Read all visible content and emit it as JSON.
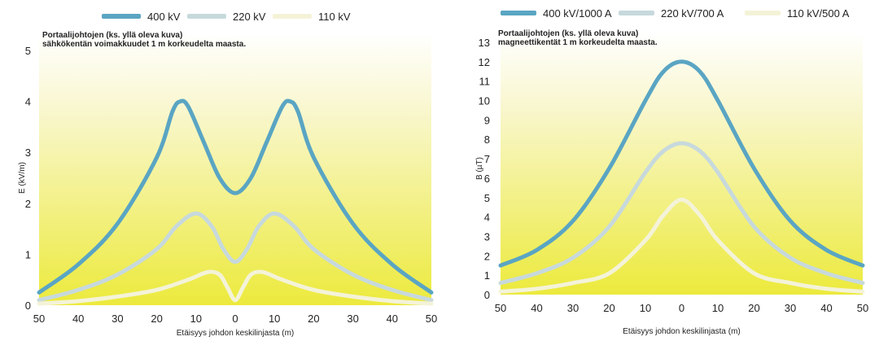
{
  "colors": {
    "series_400": "#5aa5c3",
    "series_220": "#c7d9dc",
    "series_110": "#f4f3d8",
    "bg_top": "#ffffff",
    "bg_bottom": "#ecea3c"
  },
  "chart_data": [
    {
      "type": "line",
      "annotation": "Portaalijohtojen (ks. yllä oleva kuva)\nsähkökentän voimakkuudet 1 m korkeudelta maasta.",
      "xlabel": "Etäisyys johdon keskilinjasta (m)",
      "ylabel": "E (kV/m)",
      "x_tick_labels": [
        "50",
        "40",
        "30",
        "20",
        "10",
        "0",
        "10",
        "20",
        "30",
        "40",
        "50"
      ],
      "y_tick_labels": [
        "0",
        "1",
        "2",
        "3",
        "4",
        "5"
      ],
      "xlim": [
        -50,
        50
      ],
      "ylim": [
        0,
        5
      ],
      "legend_position": "top",
      "grid": false,
      "series": [
        {
          "name": "400 kV",
          "x": [
            -50,
            -40,
            -30,
            -20,
            -16,
            -14,
            -12,
            -8,
            -4,
            0,
            4,
            8,
            12,
            14,
            16,
            20,
            30,
            40,
            50
          ],
          "y": [
            0.25,
            0.8,
            1.6,
            2.9,
            3.8,
            4.0,
            3.9,
            3.2,
            2.5,
            2.2,
            2.5,
            3.2,
            3.9,
            4.0,
            3.8,
            2.9,
            1.6,
            0.8,
            0.25
          ]
        },
        {
          "name": "220 kV",
          "x": [
            -50,
            -40,
            -30,
            -20,
            -15,
            -10,
            -6,
            -3,
            0,
            3,
            6,
            10,
            15,
            20,
            30,
            40,
            50
          ],
          "y": [
            0.1,
            0.3,
            0.6,
            1.1,
            1.55,
            1.8,
            1.55,
            1.1,
            0.85,
            1.1,
            1.55,
            1.8,
            1.55,
            1.1,
            0.6,
            0.3,
            0.1
          ]
        },
        {
          "name": "110 kV",
          "x": [
            -50,
            -40,
            -30,
            -20,
            -12,
            -7,
            -4,
            -2,
            0,
            2,
            4,
            7,
            12,
            20,
            30,
            40,
            50
          ],
          "y": [
            0.03,
            0.08,
            0.17,
            0.3,
            0.5,
            0.65,
            0.6,
            0.35,
            0.1,
            0.35,
            0.6,
            0.65,
            0.5,
            0.3,
            0.17,
            0.08,
            0.03
          ]
        }
      ]
    },
    {
      "type": "line",
      "annotation": "Portaalijohtojen (ks. yllä oleva kuva)\nmagneettikentät 1 m korkeudelta maasta.",
      "xlabel": "Etäisyys johdon keskilinjasta (m)",
      "ylabel": "B (µT)",
      "x_tick_labels": [
        "50",
        "40",
        "30",
        "20",
        "10",
        "0",
        "10",
        "20",
        "30",
        "40",
        "50"
      ],
      "y_tick_labels": [
        "0",
        "1",
        "2",
        "3",
        "4",
        "5",
        "6",
        "7",
        "8",
        "9",
        "10",
        "11",
        "12",
        "13"
      ],
      "xlim": [
        -50,
        50
      ],
      "ylim": [
        0,
        13
      ],
      "legend_position": "top",
      "grid": false,
      "series": [
        {
          "name": "400 kV/1000 A",
          "x": [
            -50,
            -40,
            -30,
            -20,
            -10,
            -5,
            0,
            5,
            10,
            20,
            30,
            40,
            50
          ],
          "y": [
            1.5,
            2.3,
            3.8,
            6.5,
            10.0,
            11.5,
            12.0,
            11.5,
            10.0,
            6.5,
            3.8,
            2.3,
            1.5
          ]
        },
        {
          "name": "220 kV/700 A",
          "x": [
            -50,
            -40,
            -30,
            -20,
            -10,
            -5,
            0,
            5,
            10,
            20,
            30,
            40,
            50
          ],
          "y": [
            0.6,
            1.1,
            1.9,
            3.5,
            6.3,
            7.4,
            7.8,
            7.4,
            6.3,
            3.5,
            1.9,
            1.1,
            0.6
          ]
        },
        {
          "name": "110 kV/500 A",
          "x": [
            -50,
            -40,
            -30,
            -20,
            -10,
            -5,
            0,
            5,
            10,
            20,
            30,
            40,
            50
          ],
          "y": [
            0.15,
            0.3,
            0.6,
            1.1,
            2.8,
            4.1,
            4.9,
            4.1,
            2.8,
            1.1,
            0.6,
            0.3,
            0.15
          ]
        }
      ]
    }
  ]
}
